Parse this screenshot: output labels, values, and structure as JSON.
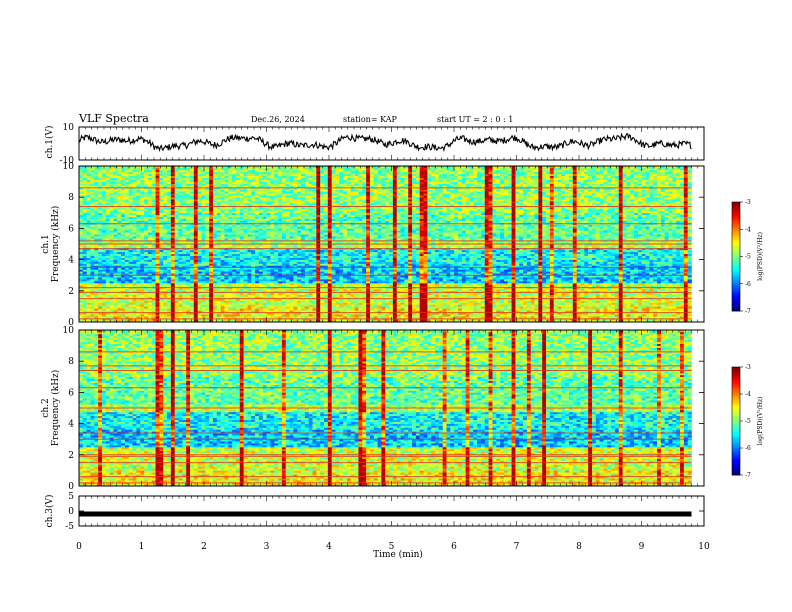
{
  "header": {
    "title": "VLF Spectra",
    "date": "Dec.26, 2024",
    "station": "station= KAP",
    "start": "start  UT =  2 : 0 : 1"
  },
  "chart_data": [
    {
      "type": "line",
      "name": "ch1-waveform",
      "ylabel": "ch.1(V)",
      "ylim": [
        -10,
        10
      ],
      "yticks": [
        "10",
        "-10"
      ],
      "xlim": [
        0,
        10
      ],
      "x_end": 9.8,
      "approx_mean": 0.5,
      "approx_range": [
        -4,
        6
      ]
    },
    {
      "type": "heatmap",
      "name": "ch1-spectrogram",
      "ylabel": "ch.1\nFrequency (kHz)",
      "ylim": [
        0,
        10
      ],
      "yticks": [
        "0",
        "2",
        "4",
        "6",
        "8",
        "10"
      ],
      "xlim": [
        0,
        10
      ],
      "x_end": 9.8,
      "colorbar": {
        "label": "log(PSD)(V²/Hz)",
        "range": [
          -7,
          -3
        ],
        "ticks": [
          "-3",
          "-4",
          "-5",
          "-6",
          "-7"
        ]
      },
      "strong_lines_khz": [
        0.2,
        0.6,
        1.5,
        1.9,
        2.2,
        3.0,
        3.5,
        4.7,
        5.0,
        5.2,
        6.3,
        7.4,
        8.6
      ]
    },
    {
      "type": "heatmap",
      "name": "ch2-spectrogram",
      "ylabel": "ch.2\nFrequency (kHz)",
      "ylim": [
        0,
        10
      ],
      "yticks": [
        "0",
        "2",
        "4",
        "6",
        "8",
        "10"
      ],
      "xlim": [
        0,
        10
      ],
      "x_end": 9.8,
      "colorbar": {
        "label": "log(PSD)(V²/Hz)",
        "range": [
          -7,
          -3
        ],
        "ticks": [
          "-3",
          "-4",
          "-5",
          "-6",
          "-7"
        ]
      },
      "strong_lines_khz": [
        0.2,
        0.6,
        1.5,
        1.9,
        2.0,
        3.0,
        3.4,
        5.0,
        6.3,
        7.4,
        7.7,
        8.6
      ]
    },
    {
      "type": "line",
      "name": "ch3-signal",
      "ylabel": "ch.3(V)",
      "ylim": [
        -5,
        5
      ],
      "yticks": [
        "5",
        "0",
        "-5"
      ],
      "xlim": [
        0,
        10
      ],
      "x_end": 9.8,
      "value": -1
    }
  ],
  "xaxis": {
    "label": "Time  (min)",
    "ticks": [
      "0",
      "1",
      "2",
      "3",
      "4",
      "5",
      "6",
      "7",
      "8",
      "9",
      "10"
    ]
  }
}
